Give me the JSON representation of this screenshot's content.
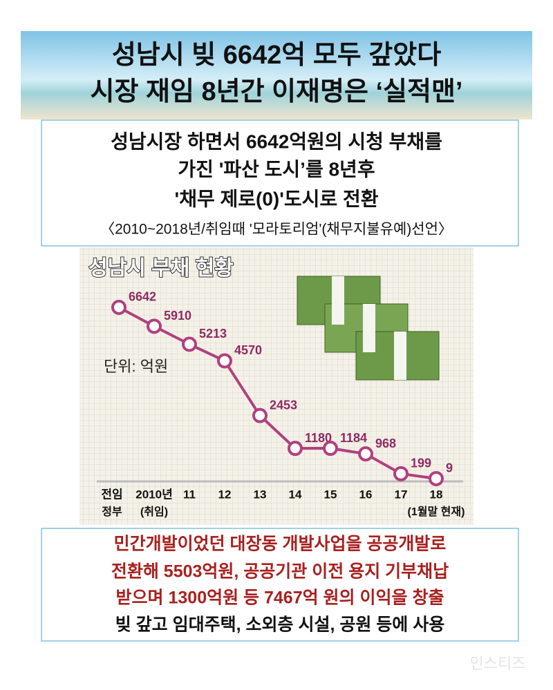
{
  "headline": [
    "성남시 빚 6642억 모두 갚았다",
    "시장 재임 8년간 이재명은 ‘실적맨’"
  ],
  "summary": {
    "lines": [
      "성남시장 하면서 6642억원의 시청 부채를",
      "가진 '파산 도시’를 8년후",
      "'채무 제로(0)'도시로 전환"
    ],
    "note": "〈2010~2018년/취임때 '모라토리엄'(채무지불유예)선언〉"
  },
  "chart_data": {
    "type": "line",
    "title": "성남시 부채 현황",
    "unit_label": "단위: 억원",
    "categories": [
      "전임",
      "2010년",
      "11",
      "12",
      "13",
      "14",
      "15",
      "16",
      "17",
      "18"
    ],
    "category_sublabels": [
      "정부",
      "(취임)",
      null,
      null,
      null,
      null,
      null,
      null,
      null,
      "(1월말 현재)"
    ],
    "series": [
      {
        "name": "성남시 부채",
        "color": "#b0407e",
        "values": [
          6642,
          5910,
          5213,
          4570,
          2453,
          1180,
          1184,
          968,
          199,
          9
        ]
      }
    ],
    "ylim": [
      0,
      7000
    ]
  },
  "details": {
    "highlight_lines": [
      "민간개발이었던 대장동 개발사업을 공공개발로",
      "전환해 5503억원, 공공기관 이전 용지 기부채납",
      "받으며 1300억원 등 7467억 원의 이익을 창출"
    ],
    "last_line": "빚 갚고 임대주택, 소외층 시설, 공원 등에 사용"
  },
  "watermark": "인스티즈"
}
